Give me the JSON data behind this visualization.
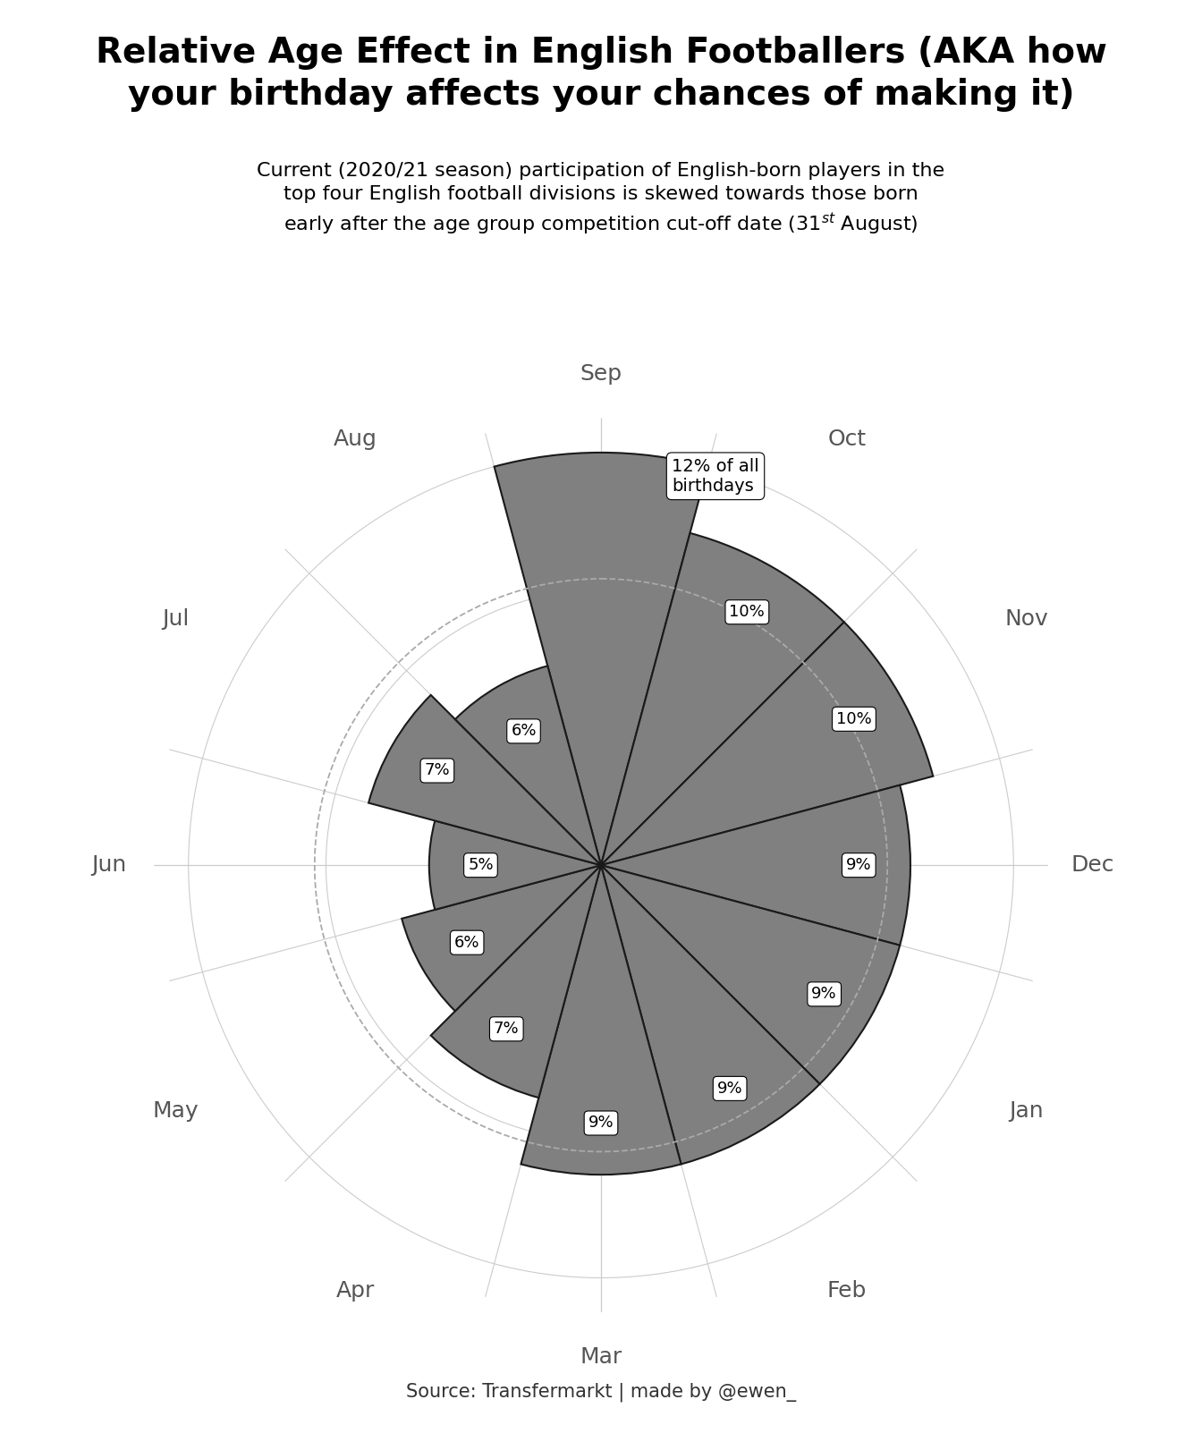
{
  "title": "Relative Age Effect in English Footballers (AKA how\nyour birthday affects your chances of making it)",
  "subtitle_line1": "Current (2020/21 season) participation of English-born players in the",
  "subtitle_line2": "top four English football divisions is skewed towards those born",
  "subtitle_line3": "early after the age group competition cut-off date (31$^{st}$ August)",
  "months": [
    "Sep",
    "Oct",
    "Nov",
    "Dec",
    "Jan",
    "Feb",
    "Mar",
    "Apr",
    "May",
    "Jun",
    "Jul",
    "Aug"
  ],
  "values": [
    12,
    10,
    10,
    9,
    9,
    9,
    9,
    7,
    6,
    5,
    7,
    6
  ],
  "bar_color": "#808080",
  "bar_edge_color": "#1a1a1a",
  "background_color": "#ffffff",
  "grid_color": "#cccccc",
  "dashed_circle_color": "#aaaaaa",
  "month_label_color": "#555555",
  "source_text": "Source: Transfermarkt | made by @ewen_",
  "rmax": 13,
  "dashed_circle_r": 8.33,
  "title_fontsize": 28,
  "subtitle_fontsize": 16,
  "month_fontsize": 18,
  "value_fontsize": 14,
  "source_fontsize": 15
}
